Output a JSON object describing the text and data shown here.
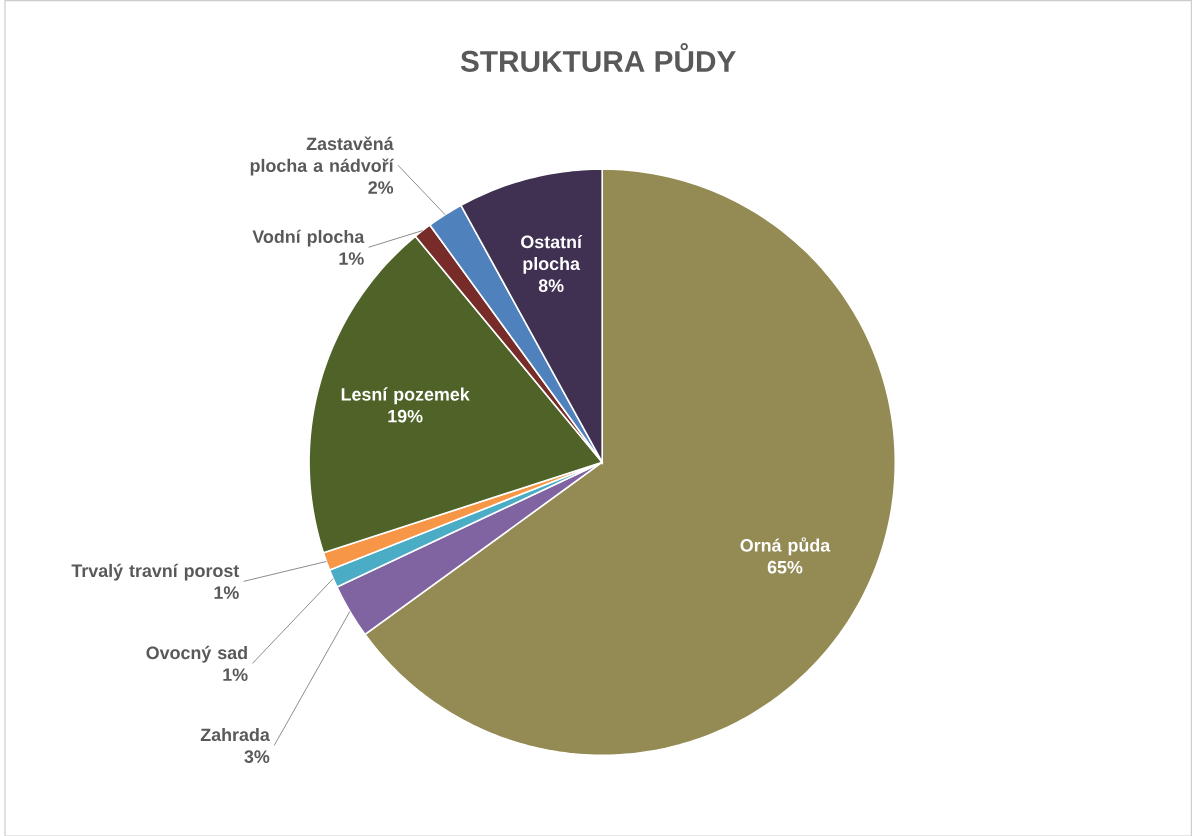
{
  "chart_data": {
    "type": "pie",
    "title": "STRUKTURA PŮDY",
    "categories": [
      "Orná půda",
      "Zahrada",
      "Ovocný sad",
      "Trvalý travní porost",
      "Lesní pozemek",
      "Vodní plocha",
      "Zastavěná plocha a nádvoří",
      "Ostatní plocha"
    ],
    "values": [
      65,
      3,
      1,
      1,
      19,
      1,
      2,
      8
    ],
    "value_labels": [
      "65%",
      "3%",
      "1%",
      "1%",
      "19%",
      "1%",
      "2%",
      "8%"
    ],
    "colors": [
      "#948a54",
      "#8064a2",
      "#4bacc6",
      "#f79646",
      "#4f6228",
      "#772c2a",
      "#4f81bd",
      "#403152"
    ]
  }
}
